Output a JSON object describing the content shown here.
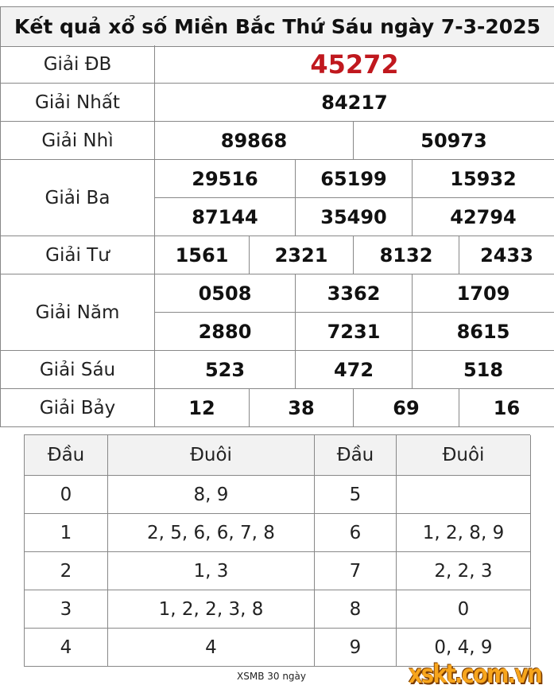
{
  "title": "Kết quả xổ số Miền Bắc Thứ Sáu ngày 7-3-2025",
  "prizes": {
    "db": {
      "label": "Giải ĐB",
      "values": [
        "45272"
      ]
    },
    "nhat": {
      "label": "Giải Nhất",
      "values": [
        "84217"
      ]
    },
    "nhi": {
      "label": "Giải Nhì",
      "values": [
        "89868",
        "50973"
      ]
    },
    "ba": {
      "label": "Giải Ba",
      "values": [
        "29516",
        "65199",
        "15932",
        "87144",
        "35490",
        "42794"
      ]
    },
    "tu": {
      "label": "Giải Tư",
      "values": [
        "1561",
        "2321",
        "8132",
        "2433"
      ]
    },
    "nam": {
      "label": "Giải Năm",
      "values": [
        "0508",
        "3362",
        "1709",
        "2880",
        "7231",
        "8615"
      ]
    },
    "sau": {
      "label": "Giải Sáu",
      "values": [
        "523",
        "472",
        "518"
      ]
    },
    "bay": {
      "label": "Giải Bảy",
      "values": [
        "12",
        "38",
        "69",
        "16"
      ]
    }
  },
  "loto": {
    "headers": [
      "Đầu",
      "Đuôi",
      "Đầu",
      "Đuôi"
    ],
    "rows": [
      [
        "0",
        "8, 9",
        "5",
        ""
      ],
      [
        "1",
        "2, 5, 6, 6, 7, 8",
        "6",
        "1, 2, 8, 9"
      ],
      [
        "2",
        "1, 3",
        "7",
        "2, 2, 3"
      ],
      [
        "3",
        "1, 2, 2, 3, 8",
        "8",
        "0"
      ],
      [
        "4",
        "4",
        "9",
        "0, 4, 9"
      ]
    ]
  },
  "footer_link": "XSMB 30 ngày",
  "watermark": "xskt.com.vn",
  "colors": {
    "special_prize": "#c0181e",
    "header_bg": "#f2f2f2",
    "logo": "#f7a51c"
  }
}
